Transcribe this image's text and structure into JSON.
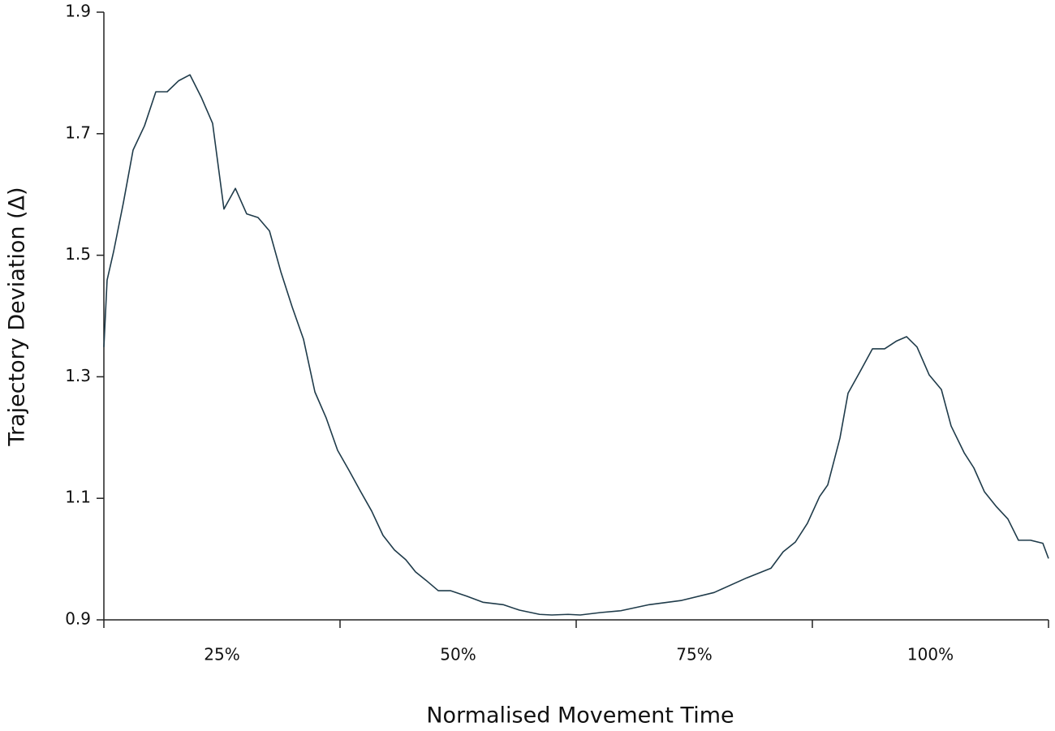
{
  "chart_data": {
    "type": "line",
    "x_title": "Normalised Movement Time",
    "y_title": "Trajectory Deviation (Δ)",
    "categories": [
      "25%",
      "50%",
      "75%",
      "100%"
    ],
    "xlim": [
      0,
      100
    ],
    "ylim": [
      0.9,
      1.9
    ],
    "yticks": [
      0.9,
      1.1,
      1.3,
      1.5,
      1.7,
      1.9
    ],
    "grid": false,
    "series": [
      {
        "color": "#1f3b4a",
        "x": [
          0,
          0.34,
          1.03,
          2.06,
          3.09,
          4.3,
          5.5,
          6.7,
          7.9,
          9.11,
          10.31,
          11.51,
          12.71,
          13.92,
          15.12,
          16.32,
          17.53,
          18.73,
          19.93,
          21.13,
          22.34,
          23.54,
          24.74,
          25.95,
          27.15,
          28.35,
          29.55,
          30.76,
          31.96,
          32.99,
          34.11,
          35.4,
          36.68,
          38.4,
          40.12,
          42.27,
          43.99,
          46.13,
          47.42,
          49.14,
          50.43,
          52.58,
          54.73,
          57.73,
          61.17,
          64.6,
          68.04,
          70.62,
          71.91,
          73.2,
          74.48,
          75.77,
          76.63,
          77.92,
          78.78,
          80.07,
          81.36,
          82.65,
          83.93,
          84.97,
          86.08,
          87.37,
          88.66,
          89.69,
          91.07,
          92.1,
          93.21,
          94.5,
          95.7,
          96.82,
          98.11,
          99.4,
          100
        ],
        "values": [
          1.349,
          1.459,
          1.506,
          1.586,
          1.673,
          1.713,
          1.769,
          1.769,
          1.787,
          1.797,
          1.76,
          1.717,
          1.576,
          1.61,
          1.568,
          1.562,
          1.54,
          1.473,
          1.415,
          1.362,
          1.275,
          1.232,
          1.179,
          1.146,
          1.112,
          1.079,
          1.039,
          1.015,
          0.999,
          0.979,
          0.965,
          0.948,
          0.948,
          0.939,
          0.929,
          0.925,
          0.916,
          0.909,
          0.908,
          0.909,
          0.908,
          0.912,
          0.915,
          0.925,
          0.932,
          0.945,
          0.969,
          0.985,
          1.012,
          1.028,
          1.059,
          1.103,
          1.122,
          1.199,
          1.273,
          1.309,
          1.346,
          1.346,
          1.359,
          1.366,
          1.349,
          1.303,
          1.279,
          1.219,
          1.175,
          1.15,
          1.111,
          1.086,
          1.066,
          1.031,
          1.031,
          1.026,
          1.001
        ]
      }
    ]
  }
}
